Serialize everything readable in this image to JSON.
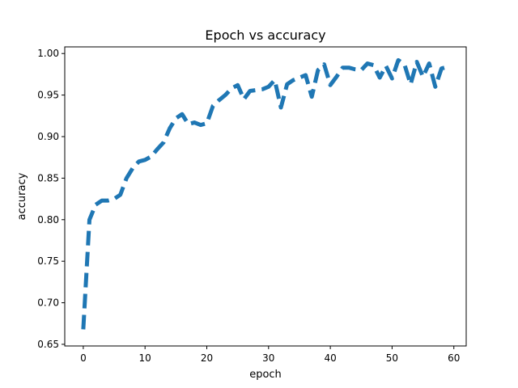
{
  "chart_data": {
    "type": "line",
    "title": "Epoch vs accuracy",
    "xlabel": "epoch",
    "ylabel": "accuracy",
    "xlim": [
      -3,
      62
    ],
    "ylim": [
      0.648,
      1.008
    ],
    "xticks": [
      0,
      10,
      20,
      30,
      40,
      50,
      60
    ],
    "yticks": [
      0.65,
      0.7,
      0.75,
      0.8,
      0.85,
      0.9,
      0.95,
      1.0
    ],
    "ytick_labels": [
      "0.65",
      "0.70",
      "0.75",
      "0.80",
      "0.85",
      "0.90",
      "0.95",
      "1.00"
    ],
    "grid": false,
    "line_style": "dashed",
    "series": [
      {
        "color": "#1f77b4",
        "x": [
          0,
          1,
          2,
          3,
          4,
          5,
          6,
          7,
          8,
          9,
          10,
          11,
          12,
          13,
          14,
          15,
          16,
          17,
          18,
          19,
          20,
          21,
          22,
          23,
          24,
          25,
          26,
          27,
          28,
          29,
          30,
          31,
          32,
          33,
          34,
          35,
          36,
          37,
          38,
          39,
          40,
          41,
          42,
          43,
          44,
          45,
          46,
          47,
          48,
          49,
          50,
          51,
          52,
          53,
          54,
          55,
          56,
          57,
          58,
          59
        ],
        "y": [
          0.668,
          0.8,
          0.818,
          0.823,
          0.823,
          0.825,
          0.83,
          0.85,
          0.862,
          0.87,
          0.872,
          0.876,
          0.885,
          0.893,
          0.91,
          0.922,
          0.927,
          0.915,
          0.917,
          0.914,
          0.916,
          0.937,
          0.944,
          0.95,
          0.958,
          0.962,
          0.945,
          0.955,
          0.956,
          0.957,
          0.96,
          0.968,
          0.935,
          0.963,
          0.968,
          0.971,
          0.974,
          0.948,
          0.98,
          0.987,
          0.962,
          0.972,
          0.983,
          0.983,
          0.981,
          0.98,
          0.988,
          0.986,
          0.971,
          0.985,
          0.97,
          0.992,
          0.987,
          0.963,
          0.99,
          0.972,
          0.988,
          0.96,
          0.982,
          0.984
        ]
      }
    ]
  }
}
